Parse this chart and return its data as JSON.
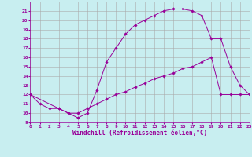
{
  "xlabel": "Windchill (Refroidissement éolien,°C)",
  "xlim": [
    0,
    23
  ],
  "ylim": [
    9,
    22
  ],
  "xticks": [
    0,
    1,
    2,
    3,
    4,
    5,
    6,
    7,
    8,
    9,
    10,
    11,
    12,
    13,
    14,
    15,
    16,
    17,
    18,
    19,
    20,
    21,
    22,
    23
  ],
  "yticks": [
    9,
    10,
    11,
    12,
    13,
    14,
    15,
    16,
    17,
    18,
    19,
    20,
    21
  ],
  "bg_color": "#c8eef0",
  "line_color": "#990099",
  "grid_color": "#aaaaaa",
  "line1_x": [
    0,
    1,
    2,
    3,
    4,
    5,
    6,
    7,
    8,
    9,
    10,
    11,
    12,
    13,
    14,
    15,
    16,
    17,
    18,
    19,
    20,
    21,
    22,
    23
  ],
  "line1_y": [
    12,
    11,
    10.5,
    10.5,
    10,
    9.5,
    10,
    12.5,
    15.5,
    17,
    18.5,
    19.5,
    20,
    20.5,
    21,
    21.2,
    21.2,
    21,
    20.5,
    18,
    18,
    15,
    13,
    12
  ],
  "line2_x": [
    0,
    3,
    4,
    5,
    6,
    7,
    8,
    9,
    10,
    11,
    12,
    13,
    14,
    15,
    16,
    17,
    18,
    19,
    20,
    21,
    22,
    23
  ],
  "line2_y": [
    12,
    10.5,
    10,
    10,
    10.5,
    11,
    11.5,
    12,
    12.3,
    12.8,
    13.2,
    13.7,
    14,
    14.3,
    14.8,
    15,
    15.5,
    16,
    12,
    12,
    12,
    12
  ],
  "font_size_label": 5.5,
  "font_size_tick": 4.5,
  "marker_size": 1.8,
  "linewidth": 0.7
}
